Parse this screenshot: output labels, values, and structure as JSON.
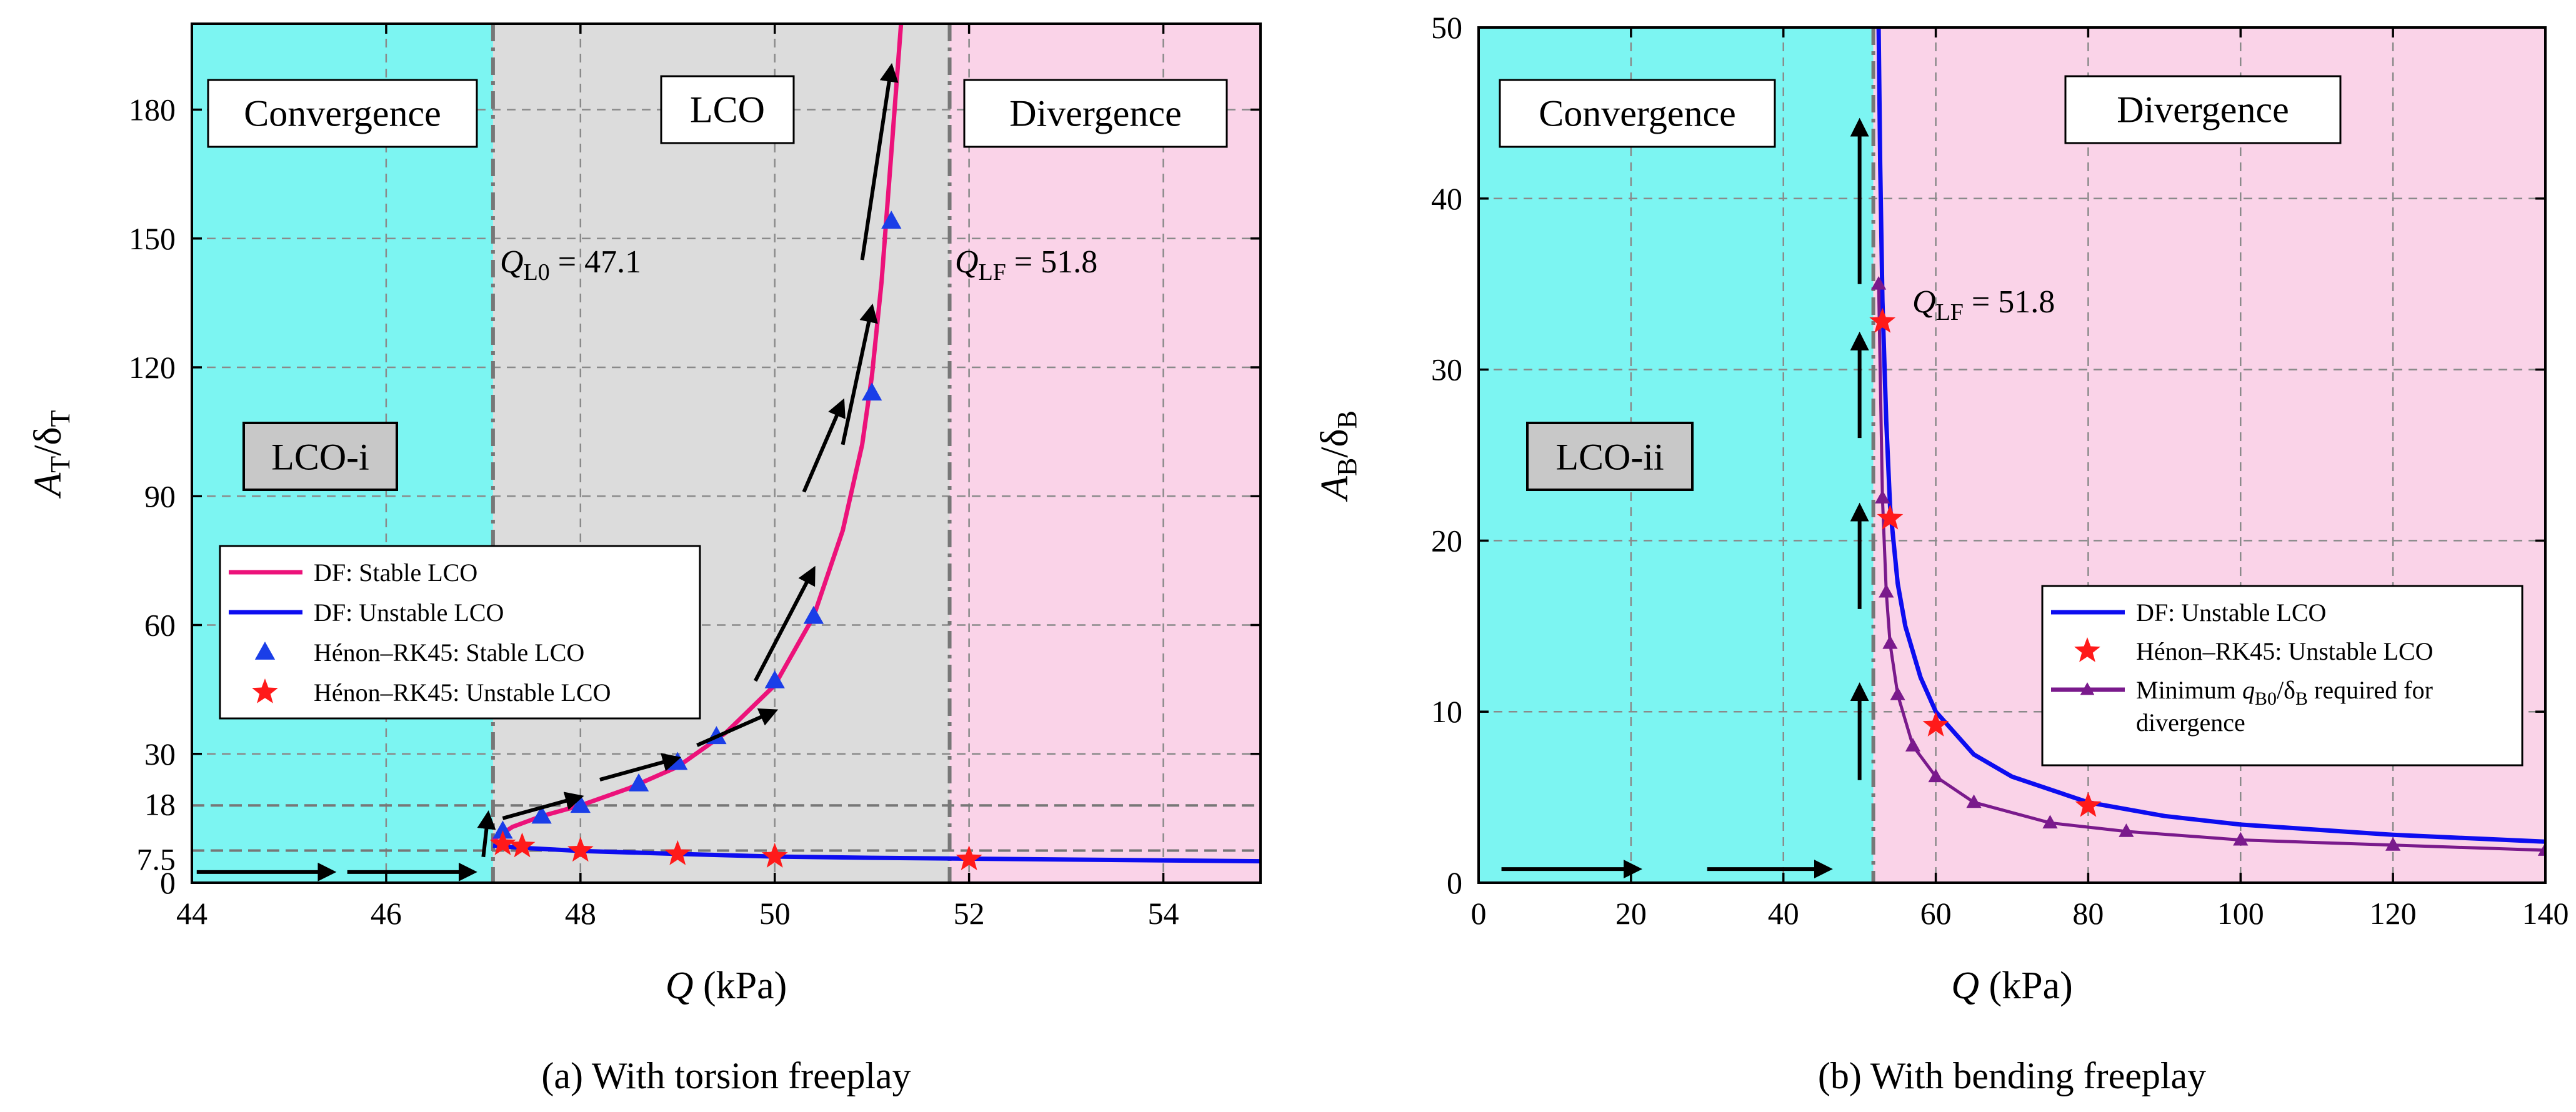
{
  "chart_data": [
    {
      "type": "line",
      "panel": "a",
      "caption": "(a)  With torsion freeplay",
      "xlabel": "Q (kPa)",
      "ylabel": "AT/δT",
      "xlim": [
        44,
        55
      ],
      "ylim": [
        0,
        200
      ],
      "xticks": [
        44,
        46,
        48,
        50,
        52,
        54
      ],
      "yticks": [
        0,
        30,
        60,
        90,
        120,
        150,
        180
      ],
      "extra_yticks": [
        {
          "label": "18",
          "value": 18,
          "color": "#e8001a"
        },
        {
          "label": "7.5",
          "value": 7.5,
          "color": "#1f2ad6"
        }
      ],
      "grid": true,
      "regions": [
        {
          "name": "Convergence",
          "from": 44,
          "to": 47.1,
          "color": "#7cf5f2"
        },
        {
          "name": "LCO",
          "from": 47.1,
          "to": 51.8,
          "color": "#dcdcdc"
        },
        {
          "name": "Divergence",
          "from": 51.8,
          "to": 55,
          "color": "#fad3e8"
        }
      ],
      "region_labels": {
        "convergence": "Convergence",
        "lco": "LCO",
        "divergence": "Divergence"
      },
      "tag": "LCO-i",
      "annotations": {
        "ql0": "QL0 = 47.1",
        "qlf": "QLF = 51.8"
      },
      "vlines": [
        47.1,
        51.8
      ],
      "hlines": [
        18,
        7.5
      ],
      "series": [
        {
          "name": "DF: Stable LCO",
          "color": "#ec127a",
          "x": [
            47.1,
            47.3,
            47.6,
            48.0,
            48.5,
            49.0,
            49.5,
            50.0,
            50.4,
            50.7,
            50.9,
            51.0,
            51.1,
            51.2,
            51.3
          ],
          "y": [
            10,
            13,
            15.5,
            18,
            22,
            27,
            35,
            46,
            62,
            82,
            102,
            118,
            140,
            170,
            200
          ]
        },
        {
          "name": "DF: Unstable LCO",
          "color": "#0d0df0",
          "x": [
            47.1,
            47.5,
            48,
            49,
            50,
            51,
            52,
            53,
            54,
            55
          ],
          "y": [
            8.6,
            8.0,
            7.4,
            6.7,
            6.1,
            5.8,
            5.6,
            5.4,
            5.2,
            5.0
          ]
        },
        {
          "name": "Hénon–RK45: Stable LCO",
          "color": "#1a3ee8",
          "marker": "triangle",
          "x": [
            47.2,
            47.6,
            48.0,
            48.6,
            49.0,
            49.4,
            50.0,
            50.4,
            51.0,
            51.2
          ],
          "y": [
            12,
            15.5,
            18,
            23,
            28,
            34,
            47,
            62,
            114,
            154
          ]
        },
        {
          "name": "Hénon–RK45: Unstable LCO",
          "color": "#ff1a1a",
          "marker": "star",
          "x": [
            47.2,
            47.4,
            48.0,
            49.0,
            50.0,
            52.0
          ],
          "y": [
            9,
            8.5,
            7.5,
            6.7,
            6.1,
            5.5
          ]
        }
      ],
      "legend": [
        "DF: Stable LCO",
        "DF: Unstable LCO",
        "Hénon–RK45: Stable LCO",
        "Hénon–RK45: Unstable LCO"
      ]
    },
    {
      "type": "line",
      "panel": "b",
      "caption": "(b)  With bending freeplay",
      "xlabel": "Q (kPa)",
      "ylabel": "AB/δB",
      "xlim": [
        0,
        140
      ],
      "ylim": [
        0,
        50
      ],
      "xticks": [
        0,
        20,
        40,
        60,
        80,
        100,
        120,
        140
      ],
      "yticks": [
        0,
        10,
        20,
        30,
        40,
        50
      ],
      "grid": true,
      "regions": [
        {
          "name": "Convergence",
          "from": 0,
          "to": 51.8,
          "color": "#7cf5f2"
        },
        {
          "name": "Divergence",
          "from": 51.8,
          "to": 140,
          "color": "#fad3e8"
        }
      ],
      "region_labels": {
        "convergence": "Convergence",
        "divergence": "Divergence"
      },
      "tag": "LCO-ii",
      "annotations": {
        "qlf": "QLF = 51.8"
      },
      "vlines": [
        51.8
      ],
      "series": [
        {
          "name": "DF: Unstable LCO",
          "color": "#0d0df0",
          "x": [
            52.5,
            52.7,
            53,
            53.5,
            54,
            55,
            56,
            58,
            60,
            65,
            70,
            80,
            90,
            100,
            120,
            140
          ],
          "y": [
            50,
            42,
            34,
            27,
            22,
            17.5,
            15,
            12,
            10,
            7.5,
            6.2,
            4.7,
            3.9,
            3.4,
            2.8,
            2.4
          ]
        },
        {
          "name": "Hénon–RK45: Unstable LCO",
          "color": "#ff1a1a",
          "marker": "star",
          "x": [
            53,
            54,
            60,
            80
          ],
          "y": [
            32.8,
            21.3,
            9.2,
            4.5
          ]
        },
        {
          "name": "Minimum qB0/δB required for divergence",
          "color": "#7a1a8c",
          "marker": "triangle",
          "x": [
            52.5,
            53,
            53.5,
            54,
            55,
            57,
            60,
            65,
            75,
            85,
            100,
            120,
            140
          ],
          "y": [
            35,
            22.5,
            17,
            14,
            11,
            8,
            6.2,
            4.7,
            3.5,
            3.0,
            2.5,
            2.2,
            1.9
          ]
        }
      ],
      "legend": [
        "DF: Unstable LCO",
        "Hénon–RK45: Unstable LCO",
        "Minimum qB0/δB required for divergence"
      ]
    }
  ]
}
